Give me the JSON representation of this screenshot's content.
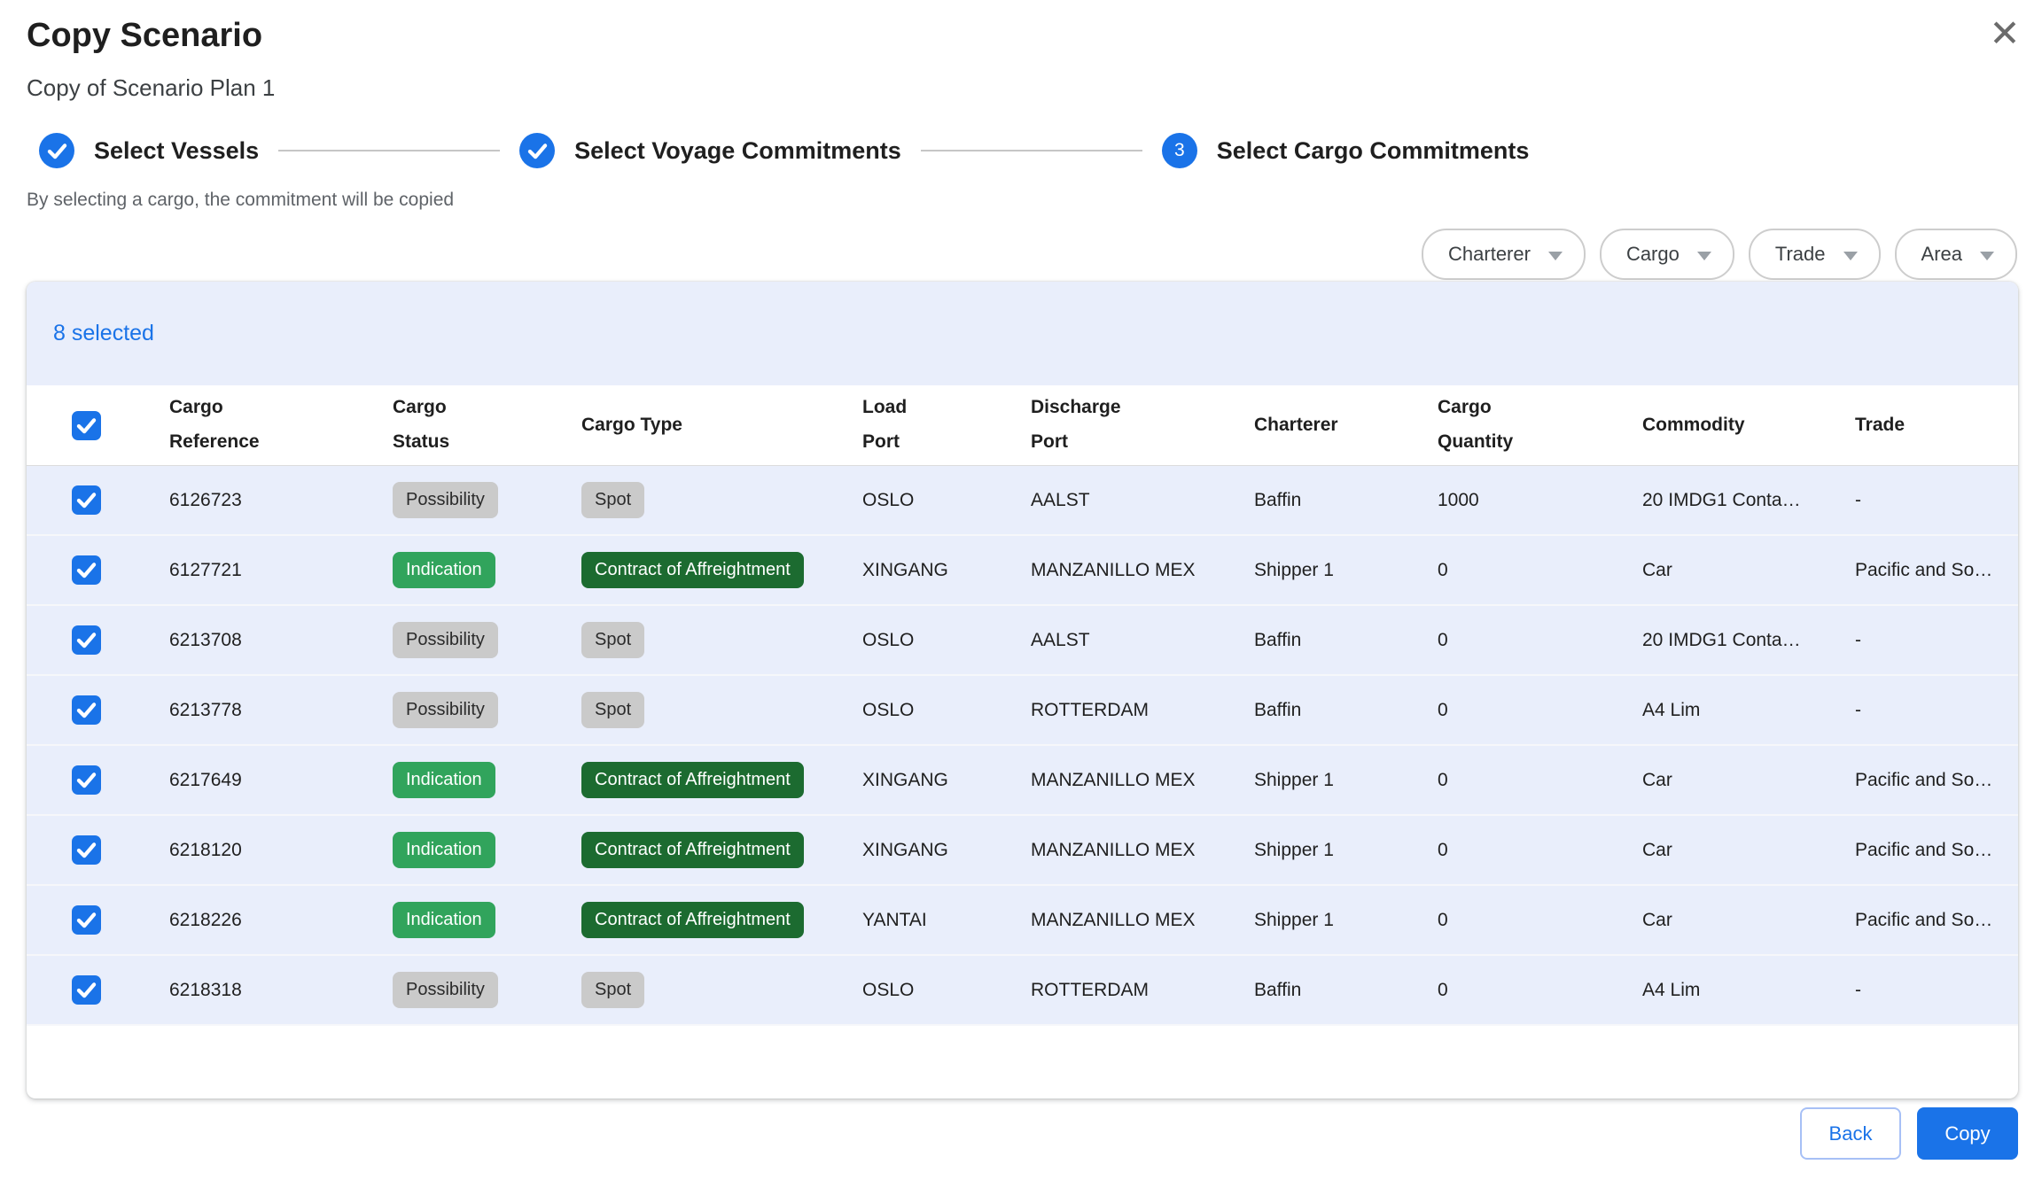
{
  "dialog": {
    "title": "Copy Scenario",
    "subtitle": "Copy of Scenario Plan 1"
  },
  "icons": {
    "close": "✕"
  },
  "stepper": {
    "steps": [
      {
        "label": "Select Vessels",
        "state": "completed"
      },
      {
        "label": "Select Voyage Commitments",
        "state": "completed"
      },
      {
        "label": "Select Cargo Commitments",
        "state": "current",
        "number": "3"
      }
    ]
  },
  "helper_text": "By selecting a cargo, the commitment will be copied",
  "filters": [
    {
      "label": "Charterer"
    },
    {
      "label": "Cargo"
    },
    {
      "label": "Trade"
    },
    {
      "label": "Area"
    }
  ],
  "table": {
    "selected_summary": "8 selected",
    "columns": [
      "Cargo\nReference",
      "Cargo\nStatus",
      "Cargo Type",
      "Load\nPort",
      "Discharge\nPort",
      "Charterer",
      "Cargo\nQuantity",
      "Commodity",
      "Trade"
    ],
    "rows": [
      {
        "checked": true,
        "cargo_reference": "6126723",
        "cargo_status": "Possibility",
        "cargo_type": "Spot",
        "load_port": "OSLO",
        "discharge_port": "AALST",
        "charterer": "Baffin",
        "cargo_quantity": "1000",
        "commodity": "20 IMDG1 Conta…",
        "trade": "-"
      },
      {
        "checked": true,
        "cargo_reference": "6127721",
        "cargo_status": "Indication",
        "cargo_type": "Contract of Affreightment",
        "load_port": "XINGANG",
        "discharge_port": "MANZANILLO MEX",
        "charterer": "Shipper 1",
        "cargo_quantity": "0",
        "commodity": "Car",
        "trade": "Pacific and So…"
      },
      {
        "checked": true,
        "cargo_reference": "6213708",
        "cargo_status": "Possibility",
        "cargo_type": "Spot",
        "load_port": "OSLO",
        "discharge_port": "AALST",
        "charterer": "Baffin",
        "cargo_quantity": "0",
        "commodity": "20 IMDG1 Conta…",
        "trade": "-"
      },
      {
        "checked": true,
        "cargo_reference": "6213778",
        "cargo_status": "Possibility",
        "cargo_type": "Spot",
        "load_port": "OSLO",
        "discharge_port": "ROTTERDAM",
        "charterer": "Baffin",
        "cargo_quantity": "0",
        "commodity": "A4 Lim",
        "trade": "-"
      },
      {
        "checked": true,
        "cargo_reference": "6217649",
        "cargo_status": "Indication",
        "cargo_type": "Contract of Affreightment",
        "load_port": "XINGANG",
        "discharge_port": "MANZANILLO MEX",
        "charterer": "Shipper 1",
        "cargo_quantity": "0",
        "commodity": "Car",
        "trade": "Pacific and So…"
      },
      {
        "checked": true,
        "cargo_reference": "6218120",
        "cargo_status": "Indication",
        "cargo_type": "Contract of Affreightment",
        "load_port": "XINGANG",
        "discharge_port": "MANZANILLO MEX",
        "charterer": "Shipper 1",
        "cargo_quantity": "0",
        "commodity": "Car",
        "trade": "Pacific and So…"
      },
      {
        "checked": true,
        "cargo_reference": "6218226",
        "cargo_status": "Indication",
        "cargo_type": "Contract of Affreightment",
        "load_port": "YANTAI",
        "discharge_port": "MANZANILLO MEX",
        "charterer": "Shipper 1",
        "cargo_quantity": "0",
        "commodity": "Car",
        "trade": "Pacific and So…"
      },
      {
        "checked": true,
        "cargo_reference": "6218318",
        "cargo_status": "Possibility",
        "cargo_type": "Spot",
        "load_port": "OSLO",
        "discharge_port": "ROTTERDAM",
        "charterer": "Baffin",
        "cargo_quantity": "0",
        "commodity": "A4 Lim",
        "trade": "-"
      }
    ]
  },
  "badge_styles": {
    "Possibility": "gray",
    "Spot": "gray",
    "Indication": "green",
    "Contract of Affreightment": "darkgreen"
  },
  "footer": {
    "back_label": "Back",
    "copy_label": "Copy"
  },
  "colors": {
    "accent": "#1a73e8",
    "selected_bar_bg": "#e9eefb",
    "row_bg": "#e9eefb",
    "badge_gray_bg": "#cacaca",
    "badge_gray_fg": "#2b2b2b",
    "badge_green_bg": "#31a45c",
    "badge_green_fg": "#ffffff",
    "badge_darkgreen_bg": "#1c6b30",
    "badge_darkgreen_fg": "#ffffff",
    "back_border": "#a7c0f6"
  }
}
